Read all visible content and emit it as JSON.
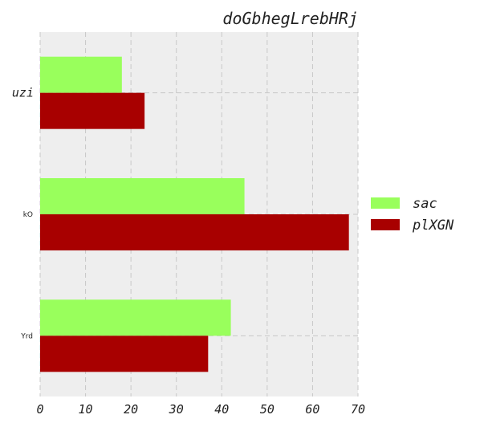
{
  "chart_data": {
    "type": "bar",
    "orientation": "horizontal",
    "title": "doGbhegLrebHRj",
    "categories": [
      "uzi",
      "kO",
      "Yrd"
    ],
    "series": [
      {
        "name": "sac",
        "color": "#99ff5c",
        "values": [
          18,
          45,
          42
        ]
      },
      {
        "name": "plXGN",
        "color": "#a80000",
        "values": [
          23,
          68,
          37
        ]
      }
    ],
    "xlim": [
      0,
      70
    ],
    "xticks": [
      0,
      10,
      20,
      30,
      40,
      50,
      60,
      70
    ],
    "grid": true,
    "legend_position": "right",
    "xlabel": "",
    "ylabel": ""
  }
}
